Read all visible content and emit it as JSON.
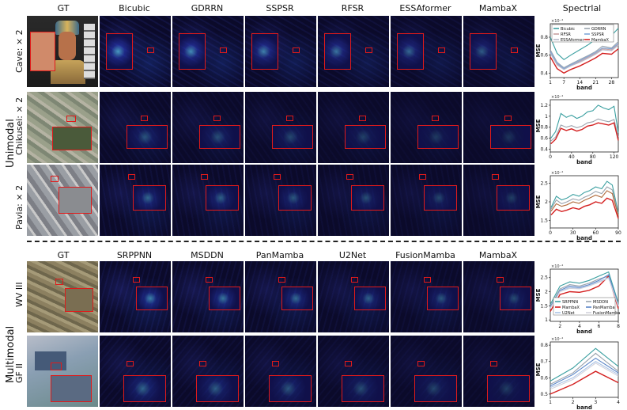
{
  "unimodal": {
    "group_label": "Unimodal",
    "headers": [
      "GT",
      "Bicubic",
      "GDRRN",
      "SSPSR",
      "RFSR",
      "ESSAformer",
      "MambaX",
      "Spectrlal"
    ],
    "rows": [
      {
        "label": "Cave: × 2"
      },
      {
        "label": "Chikusei: × 2"
      },
      {
        "label": "Pavia: × 2"
      }
    ]
  },
  "multimodal": {
    "group_label": "Multimodal",
    "headers": [
      "GT",
      "SRPPNN",
      "MSDDN",
      "PanMamba",
      "U2Net",
      "FusionMamba",
      "MambaX"
    ],
    "rows": [
      {
        "label": "WV III"
      },
      {
        "label": "GF II"
      }
    ]
  },
  "colors": {
    "error_bg": "#0b0a2a",
    "inset_border": "#e01a1a"
  },
  "chart_data": [
    {
      "type": "line",
      "scale_note": "×10⁻⁴",
      "xlabel": "band",
      "ylabel": "MSE",
      "x_ticks": [
        1,
        7,
        14,
        21,
        28
      ],
      "y_ticks": [
        0.4,
        0.6,
        0.8
      ],
      "ylim": [
        0.35,
        0.95
      ],
      "legend": [
        "Bicubic",
        "GDRRN",
        "RFSR",
        "SSPSR",
        "ESSAformer",
        "MambaX"
      ],
      "series": [
        {
          "name": "Bicubic",
          "color": "#3a9fa0",
          "x": [
            1,
            4,
            7,
            10,
            14,
            18,
            21,
            24,
            28,
            31
          ],
          "values": [
            0.8,
            0.62,
            0.55,
            0.6,
            0.66,
            0.72,
            0.78,
            0.85,
            0.82,
            0.9
          ]
        },
        {
          "name": "GDRRN",
          "color": "#9aa3ad",
          "x": [
            1,
            4,
            7,
            10,
            14,
            18,
            21,
            24,
            28,
            31
          ],
          "values": [
            0.66,
            0.52,
            0.46,
            0.5,
            0.55,
            0.6,
            0.64,
            0.7,
            0.68,
            0.75
          ]
        },
        {
          "name": "RFSR",
          "color": "#c8a0a0",
          "x": [
            1,
            4,
            7,
            10,
            14,
            18,
            21,
            24,
            28,
            31
          ],
          "values": [
            0.63,
            0.5,
            0.45,
            0.48,
            0.53,
            0.58,
            0.62,
            0.67,
            0.66,
            0.72
          ]
        },
        {
          "name": "SSPSR",
          "color": "#7ea6d9",
          "x": [
            1,
            4,
            7,
            10,
            14,
            18,
            21,
            24,
            28,
            31
          ],
          "values": [
            0.64,
            0.51,
            0.45,
            0.49,
            0.54,
            0.59,
            0.63,
            0.68,
            0.67,
            0.73
          ]
        },
        {
          "name": "ESSAformer",
          "color": "#b9b9c9",
          "x": [
            1,
            4,
            7,
            10,
            14,
            18,
            21,
            24,
            28,
            31
          ],
          "values": [
            0.62,
            0.49,
            0.44,
            0.48,
            0.52,
            0.57,
            0.61,
            0.66,
            0.65,
            0.71
          ]
        },
        {
          "name": "MambaX",
          "color": "#d42020",
          "x": [
            1,
            4,
            7,
            10,
            14,
            18,
            21,
            24,
            28,
            31
          ],
          "values": [
            0.58,
            0.45,
            0.4,
            0.44,
            0.48,
            0.53,
            0.57,
            0.62,
            0.61,
            0.67
          ]
        }
      ]
    },
    {
      "type": "line",
      "scale_note": "×10⁻⁴",
      "xlabel": "band",
      "ylabel": "MSE",
      "x_ticks": [
        0,
        40,
        80,
        120
      ],
      "y_ticks": [
        0.4,
        0.6,
        0.8,
        1.0,
        1.2
      ],
      "ylim": [
        0.35,
        1.3
      ],
      "series": [
        {
          "name": "Bicubic",
          "color": "#3a9fa0",
          "x": [
            1,
            10,
            20,
            30,
            40,
            50,
            60,
            70,
            80,
            90,
            100,
            110,
            120,
            128
          ],
          "values": [
            0.6,
            0.72,
            1.05,
            0.98,
            1.02,
            0.96,
            1.0,
            1.08,
            1.1,
            1.2,
            1.15,
            1.12,
            1.18,
            0.7
          ]
        },
        {
          "name": "GDRRN",
          "color": "#9aa3ad",
          "x": [
            1,
            10,
            20,
            30,
            40,
            50,
            60,
            70,
            80,
            90,
            100,
            110,
            120,
            128
          ],
          "values": [
            0.55,
            0.62,
            0.84,
            0.8,
            0.83,
            0.79,
            0.82,
            0.88,
            0.9,
            0.95,
            0.92,
            0.9,
            0.94,
            0.62
          ]
        },
        {
          "name": "MambaX",
          "color": "#d42020",
          "x": [
            1,
            10,
            20,
            30,
            40,
            50,
            60,
            70,
            80,
            90,
            100,
            110,
            120,
            128
          ],
          "values": [
            0.5,
            0.58,
            0.78,
            0.74,
            0.77,
            0.73,
            0.76,
            0.82,
            0.84,
            0.88,
            0.86,
            0.84,
            0.88,
            0.56
          ]
        }
      ]
    },
    {
      "type": "line",
      "scale_note": "×10⁻⁴",
      "xlabel": "band",
      "ylabel": "MSE",
      "x_ticks": [
        0,
        30,
        60,
        90
      ],
      "y_ticks": [
        1.5,
        2.0,
        2.5
      ],
      "ylim": [
        1.3,
        2.7
      ],
      "series": [
        {
          "name": "Bicubic",
          "color": "#3a9fa0",
          "x": [
            1,
            8,
            15,
            22,
            30,
            38,
            45,
            52,
            60,
            68,
            75,
            82,
            90
          ],
          "values": [
            1.85,
            2.15,
            2.05,
            2.1,
            2.2,
            2.15,
            2.25,
            2.3,
            2.4,
            2.35,
            2.55,
            2.45,
            1.7
          ]
        },
        {
          "name": "GDRRN",
          "color": "#9aa3ad",
          "x": [
            1,
            8,
            15,
            22,
            30,
            38,
            45,
            52,
            60,
            68,
            75,
            82,
            90
          ],
          "values": [
            1.8,
            2.05,
            1.95,
            2.0,
            2.08,
            2.04,
            2.12,
            2.18,
            2.28,
            2.22,
            2.4,
            2.32,
            1.65
          ]
        },
        {
          "name": "RFSR",
          "color": "#b06a3a",
          "x": [
            1,
            8,
            15,
            22,
            30,
            38,
            45,
            52,
            60,
            68,
            75,
            82,
            90
          ],
          "values": [
            1.75,
            1.95,
            1.88,
            1.92,
            2.0,
            1.96,
            2.04,
            2.1,
            2.18,
            2.12,
            2.3,
            2.22,
            1.62
          ]
        },
        {
          "name": "MambaX",
          "color": "#d42020",
          "x": [
            1,
            8,
            15,
            22,
            30,
            38,
            45,
            52,
            60,
            68,
            75,
            82,
            90
          ],
          "values": [
            1.65,
            1.8,
            1.74,
            1.78,
            1.84,
            1.8,
            1.88,
            1.92,
            2.0,
            1.96,
            2.1,
            2.04,
            1.55
          ]
        }
      ]
    },
    {
      "type": "line",
      "scale_note": "×10⁻⁴",
      "xlabel": "band",
      "ylabel": "MSE",
      "x_ticks": [
        2,
        4,
        6,
        8
      ],
      "y_ticks": [
        1.0,
        1.5,
        2.0,
        2.5
      ],
      "ylim": [
        0.95,
        2.8
      ],
      "legend": [
        "SRPPNN",
        "MSDDN",
        "MambaX",
        "PanMamba",
        "U2Net",
        "FusionMamba"
      ],
      "series": [
        {
          "name": "SRPPNN",
          "color": "#3a9fa0",
          "x": [
            1,
            2,
            3,
            4,
            5,
            6,
            7,
            8
          ],
          "values": [
            1.55,
            2.2,
            2.35,
            2.3,
            2.4,
            2.55,
            2.7,
            1.6
          ]
        },
        {
          "name": "MSDDN",
          "color": "#9aa3ad",
          "x": [
            1,
            2,
            3,
            4,
            5,
            6,
            7,
            8
          ],
          "values": [
            1.48,
            2.1,
            2.25,
            2.2,
            2.3,
            2.45,
            2.55,
            1.55
          ]
        },
        {
          "name": "MambaX",
          "color": "#d42020",
          "x": [
            1,
            2,
            3,
            4,
            5,
            6,
            7,
            8
          ],
          "values": [
            1.3,
            1.9,
            2.0,
            1.98,
            2.05,
            2.2,
            2.55,
            1.4
          ]
        },
        {
          "name": "PanMamba",
          "color": "#5b86c8",
          "x": [
            1,
            2,
            3,
            4,
            5,
            6,
            7,
            8
          ],
          "values": [
            1.45,
            2.05,
            2.2,
            2.15,
            2.25,
            2.4,
            2.6,
            1.52
          ]
        },
        {
          "name": "U2Net",
          "color": "#a9c3e6",
          "x": [
            1,
            2,
            3,
            4,
            5,
            6,
            7,
            8
          ],
          "values": [
            1.42,
            2.02,
            2.15,
            2.12,
            2.22,
            2.36,
            2.5,
            1.5
          ]
        },
        {
          "name": "FusionMamba",
          "color": "#d2d2dc",
          "x": [
            1,
            2,
            3,
            4,
            5,
            6,
            7,
            8
          ],
          "values": [
            1.4,
            2.0,
            2.12,
            2.1,
            2.2,
            2.33,
            2.48,
            1.48
          ]
        }
      ]
    },
    {
      "type": "line",
      "scale_note": "×10⁻⁴",
      "xlabel": "band",
      "ylabel": "MSE",
      "x_ticks": [
        1,
        2,
        3,
        4
      ],
      "y_ticks": [
        0.5,
        0.6,
        0.7,
        0.8
      ],
      "ylim": [
        0.48,
        0.82
      ],
      "series": [
        {
          "name": "SRPPNN",
          "color": "#3a9fa0",
          "x": [
            1,
            2,
            3,
            4
          ],
          "values": [
            0.58,
            0.66,
            0.78,
            0.67
          ]
        },
        {
          "name": "MSDDN",
          "color": "#9aa3ad",
          "x": [
            1,
            2,
            3,
            4
          ],
          "values": [
            0.56,
            0.63,
            0.75,
            0.64
          ]
        },
        {
          "name": "PanMamba",
          "color": "#5b86c8",
          "x": [
            1,
            2,
            3,
            4
          ],
          "values": [
            0.55,
            0.62,
            0.72,
            0.63
          ]
        },
        {
          "name": "U2Net",
          "color": "#a9c3e6",
          "x": [
            1,
            2,
            3,
            4
          ],
          "values": [
            0.54,
            0.6,
            0.7,
            0.62
          ]
        },
        {
          "name": "FusionMamba",
          "color": "#d2d2dc",
          "x": [
            1,
            2,
            3,
            4
          ],
          "values": [
            0.53,
            0.59,
            0.69,
            0.61
          ]
        },
        {
          "name": "MambaX",
          "color": "#d42020",
          "x": [
            1,
            2,
            3,
            4
          ],
          "values": [
            0.5,
            0.56,
            0.64,
            0.57
          ]
        }
      ]
    }
  ]
}
